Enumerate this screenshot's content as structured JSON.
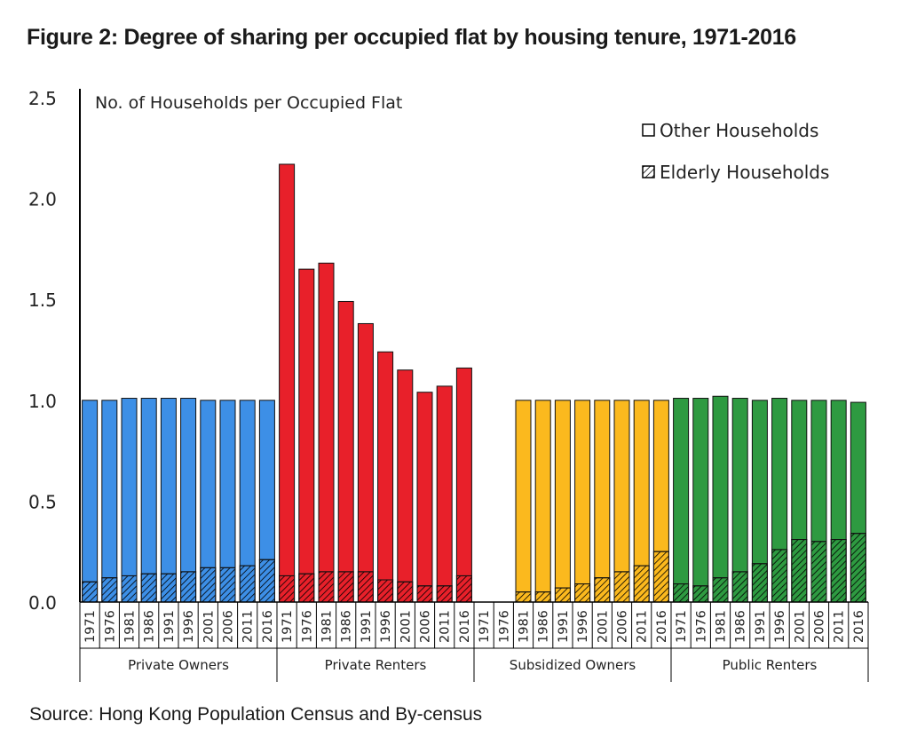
{
  "title": "Figure 2: Degree of sharing per occupied flat by housing tenure, 1971-2016",
  "source": "Source: Hong Kong Population Census and By-census",
  "chart_data": {
    "type": "bar",
    "stacked": true,
    "title": "Figure 2: Degree of sharing per occupied flat by housing tenure, 1971-2016",
    "ylabel": "No. of Households per Occupied Flat",
    "ylim": [
      0,
      2.5
    ],
    "yticks": [
      "0.0",
      "0.5",
      "1.0",
      "1.5",
      "2.0",
      "2.5"
    ],
    "years": [
      "1971",
      "1976",
      "1981",
      "1986",
      "1991",
      "1996",
      "2001",
      "2006",
      "2011",
      "2016"
    ],
    "legend": {
      "position": "top-right",
      "other_label": "Other Households",
      "elderly_label": "Elderly Households"
    },
    "groups": [
      {
        "name": "Private Owners",
        "color": "#3d8fe6",
        "elderly": [
          0.1,
          0.12,
          0.13,
          0.14,
          0.14,
          0.15,
          0.17,
          0.17,
          0.18,
          0.21
        ],
        "total": [
          1.0,
          1.0,
          1.01,
          1.01,
          1.01,
          1.01,
          1.0,
          1.0,
          1.0,
          1.0
        ]
      },
      {
        "name": "Private Renters",
        "color": "#e8202a",
        "elderly": [
          0.13,
          0.14,
          0.15,
          0.15,
          0.15,
          0.11,
          0.1,
          0.08,
          0.08,
          0.13
        ],
        "total": [
          2.17,
          1.65,
          1.68,
          1.49,
          1.38,
          1.24,
          1.15,
          1.04,
          1.07,
          1.16
        ]
      },
      {
        "name": "Subsidized Owners",
        "color": "#fbb91e",
        "elderly": [
          null,
          null,
          0.05,
          0.05,
          0.07,
          0.09,
          0.12,
          0.15,
          0.18,
          0.25
        ],
        "total": [
          null,
          null,
          1.0,
          1.0,
          1.0,
          1.0,
          1.0,
          1.0,
          1.0,
          1.0
        ]
      },
      {
        "name": "Public Renters",
        "color": "#2e9a41",
        "elderly": [
          0.09,
          0.08,
          0.12,
          0.15,
          0.19,
          0.26,
          0.31,
          0.3,
          0.31,
          0.34
        ],
        "total": [
          1.01,
          1.01,
          1.02,
          1.01,
          1.0,
          1.01,
          1.0,
          1.0,
          1.0,
          0.99
        ]
      }
    ]
  }
}
